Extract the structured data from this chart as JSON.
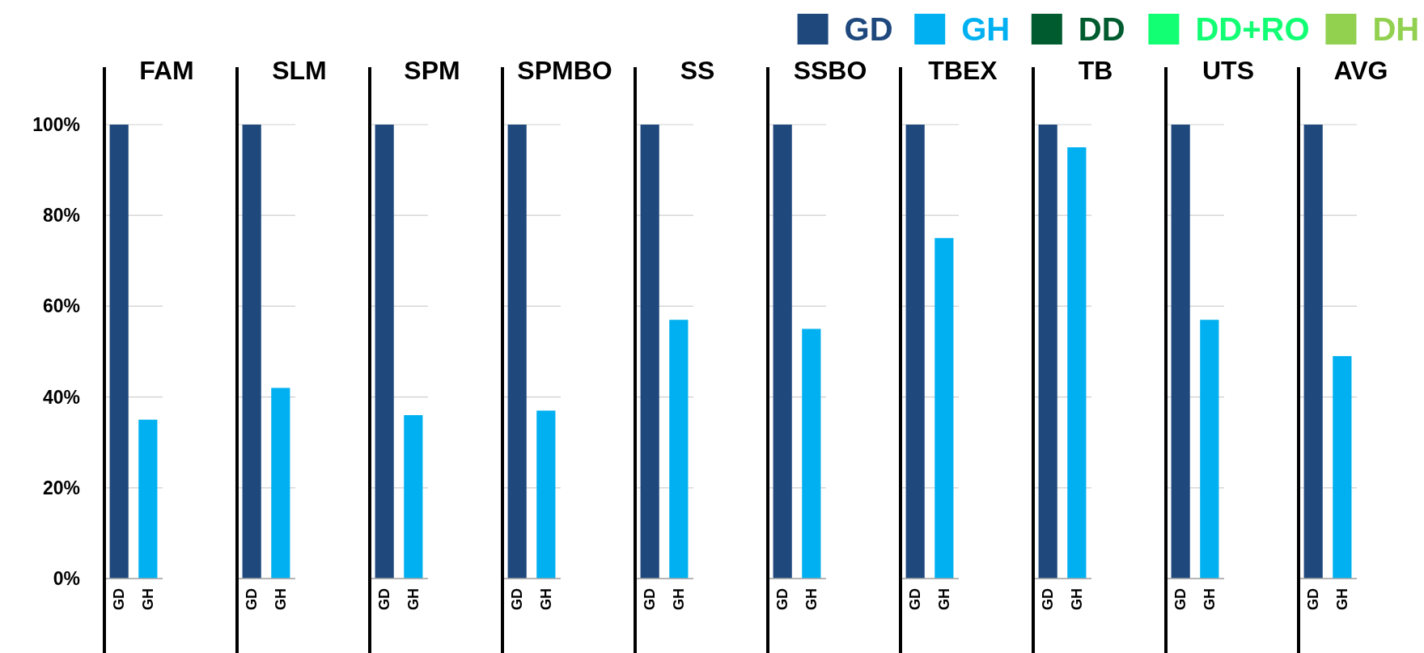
{
  "chart_data": [
    {
      "type": "bar",
      "title": "FAM",
      "categories": [
        "GD",
        "GH"
      ],
      "legend": "top right",
      "ylim": [
        0,
        100
      ],
      "yticks": [
        {
          "value": 0,
          "label": "0%"
        },
        {
          "value": 20,
          "label": "20%"
        },
        {
          "value": 40,
          "label": "40%"
        },
        {
          "value": 60,
          "label": "60%"
        },
        {
          "value": 80,
          "label": "80%"
        },
        {
          "value": 100,
          "label": "100%"
        }
      ],
      "grid": "y",
      "series": [
        {
          "name": "GD",
          "color": "#1f497d",
          "values": [
            100,
            null
          ]
        },
        {
          "name": "GH",
          "color": "#00b0f0",
          "values": [
            null,
            35
          ]
        },
        {
          "name": "DD",
          "color": "#005c2e",
          "values": [
            null,
            null
          ]
        },
        {
          "name": "DD+RO",
          "color": "#12ff74",
          "values": [
            null,
            null
          ]
        },
        {
          "name": "DH",
          "color": "#92d050",
          "values": [
            null,
            null
          ]
        }
      ]
    },
    {
      "type": "bar",
      "title": "SLM",
      "categories": [
        "GD",
        "GH"
      ],
      "tick_labels": "x",
      "ylim": [
        0,
        100
      ],
      "yticks": [
        0,
        20,
        40,
        60,
        80,
        100
      ],
      "grid": "y",
      "series": [
        {
          "color": "#1f497d",
          "values": [
            100,
            null
          ]
        },
        {
          "color": "#00b0f0",
          "values": [
            null,
            42
          ]
        }
      ]
    },
    {
      "type": "bar",
      "title": "SPM",
      "categories": [
        "GD",
        "GH"
      ],
      "tick_labels": "x",
      "ylim": [
        0,
        100
      ],
      "yticks": [
        0,
        20,
        40,
        60,
        80,
        100
      ],
      "grid": "y",
      "series": [
        {
          "color": "#1f497d",
          "values": [
            100,
            null
          ]
        },
        {
          "color": "#00b0f0",
          "values": [
            null,
            36
          ]
        }
      ]
    },
    {
      "type": "bar",
      "title": "SPMBO",
      "categories": [
        "GD",
        "GH"
      ],
      "tick_labels": "x",
      "ylim": [
        0,
        100
      ],
      "yticks": [
        0,
        20,
        40,
        60,
        80,
        100
      ],
      "grid": "y",
      "series": [
        {
          "color": "#1f497d",
          "values": [
            100,
            null
          ]
        },
        {
          "color": "#00b0f0",
          "values": [
            null,
            37
          ]
        }
      ]
    },
    {
      "type": "bar",
      "title": "SS",
      "categories": [
        "GD",
        "GH"
      ],
      "tick_labels": "x",
      "ylim": [
        0,
        100
      ],
      "yticks": [
        0,
        20,
        40,
        60,
        80,
        100
      ],
      "grid": "y",
      "series": [
        {
          "color": "#1f497d",
          "values": [
            100,
            null
          ]
        },
        {
          "color": "#00b0f0",
          "values": [
            null,
            57
          ]
        }
      ]
    },
    {
      "type": "bar",
      "title": "SSBO",
      "categories": [
        "GD",
        "GH"
      ],
      "tick_labels": "x",
      "ylim": [
        0,
        100
      ],
      "yticks": [
        0,
        20,
        40,
        60,
        80,
        100
      ],
      "grid": "y",
      "series": [
        {
          "color": "#1f497d",
          "values": [
            100,
            null
          ]
        },
        {
          "color": "#00b0f0",
          "values": [
            null,
            55
          ]
        }
      ]
    },
    {
      "type": "bar",
      "title": "TBEX",
      "categories": [
        "GD",
        "GH"
      ],
      "tick_labels": "x",
      "ylim": [
        0,
        100
      ],
      "yticks": [
        0,
        20,
        40,
        60,
        80,
        100
      ],
      "grid": "y",
      "series": [
        {
          "color": "#1f497d",
          "values": [
            100,
            null
          ]
        },
        {
          "color": "#00b0f0",
          "values": [
            null,
            75
          ]
        }
      ]
    },
    {
      "type": "bar",
      "title": "TB",
      "categories": [
        "GD",
        "GH"
      ],
      "tick_labels": "x",
      "ylim": [
        0,
        100
      ],
      "yticks": [
        0,
        20,
        40,
        60,
        80,
        100
      ],
      "grid": "y",
      "series": [
        {
          "color": "#1f497d",
          "values": [
            100,
            null
          ]
        },
        {
          "color": "#00b0f0",
          "values": [
            null,
            95
          ]
        }
      ]
    },
    {
      "type": "bar",
      "title": "UTS",
      "categories": [
        "GD",
        "GH"
      ],
      "tick_labels": "x",
      "ylim": [
        0,
        100
      ],
      "yticks": [
        0,
        20,
        40,
        60,
        80,
        100
      ],
      "grid": "y",
      "series": [
        {
          "color": "#1f497d",
          "values": [
            100,
            null
          ]
        },
        {
          "color": "#00b0f0",
          "values": [
            null,
            57
          ]
        }
      ]
    },
    {
      "type": "bar",
      "title": "AVG",
      "categories": [
        "GD",
        "GH"
      ],
      "tick_labels": "x",
      "ylim": [
        0,
        100
      ],
      "yticks": [
        0,
        20,
        40,
        60,
        80,
        100
      ],
      "grid": "y",
      "series": [
        {
          "color": "#1f497d",
          "values": [
            100,
            null
          ]
        },
        {
          "color": "#00b0f0",
          "values": [
            null,
            49
          ]
        }
      ]
    }
  ]
}
